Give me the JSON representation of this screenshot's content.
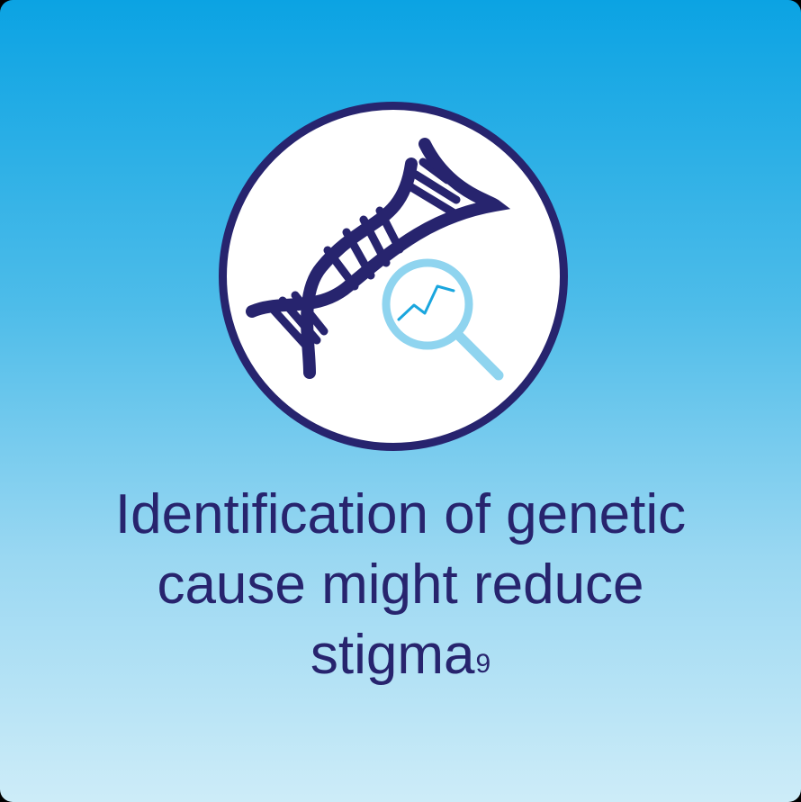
{
  "caption": {
    "line1": "Identification of genetic",
    "line2": "cause might reduce",
    "line3": "stigma",
    "superscript": "9"
  },
  "icons": {
    "main": "dna-helix-icon",
    "overlay": "magnifying-glass-icon"
  },
  "colors": {
    "gradient_top": "#0ba3e3",
    "gradient_bottom": "#cdecf8",
    "navy": "#27246e",
    "light_blue": "#8fd4ef",
    "mid_blue": "#1aa6de",
    "circle_fill": "#ffffff"
  }
}
